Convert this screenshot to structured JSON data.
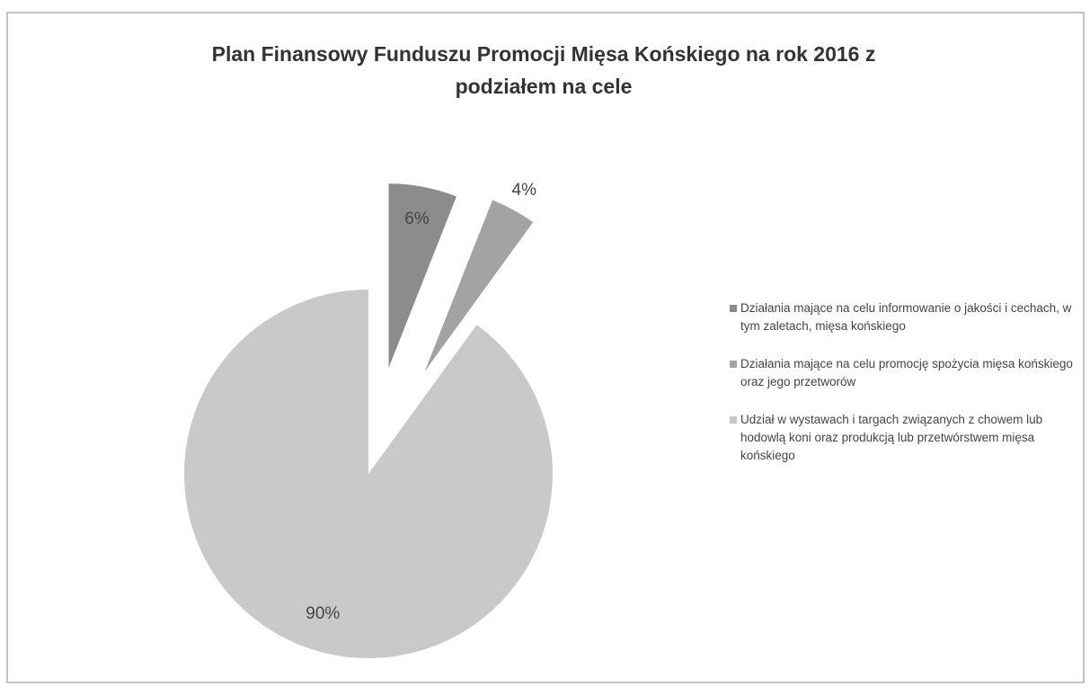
{
  "chart_data": {
    "type": "pie",
    "title": "Plan Finansowy Funduszu Promocji Mięsa Końskiego na rok 2016 z podziałem na cele",
    "categories": [
      "Działania mające na celu informowanie o jakości i cechach, w tym zaletach, mięsa końskiego",
      "Działania mające na celu promocję spożycia mięsa końskiego oraz jego przetworów",
      "Udział w wystawach i targach związanych z chowem lub hodowlą koni oraz produkcją lub przetwórstwem mięsa końskiego"
    ],
    "values": [
      6,
      4,
      90
    ],
    "value_labels": [
      "6%",
      "4%",
      "90%"
    ],
    "colors": [
      "#8c8c8c",
      "#a3a3a3",
      "#c9c9c9"
    ],
    "legend": "right"
  }
}
